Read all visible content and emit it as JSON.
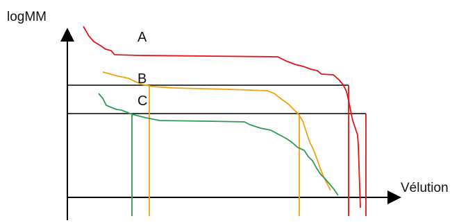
{
  "axes": {
    "y_label": "logMM",
    "x_label": "Vélution"
  },
  "curves": [
    {
      "id": "A",
      "label": "A",
      "color": "#e0141c"
    },
    {
      "id": "B",
      "label": "B",
      "color": "#f0a010"
    },
    {
      "id": "C",
      "label": "C",
      "color": "#2e9a55"
    }
  ]
}
